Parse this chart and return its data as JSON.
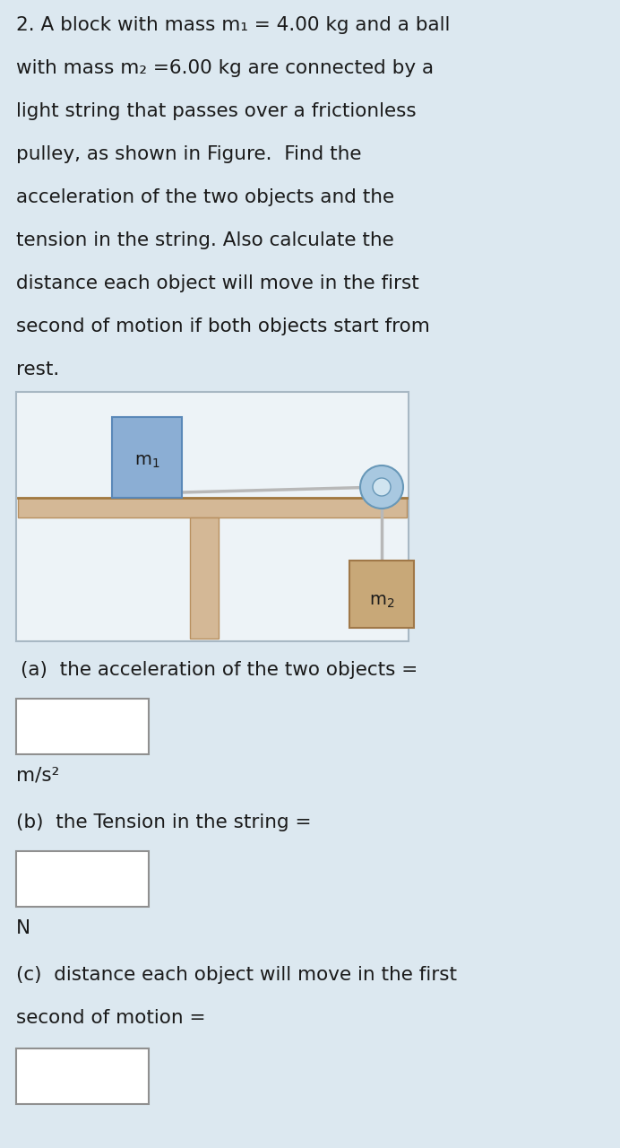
{
  "bg_color": "#dce8f0",
  "text_color": "#1a1a1a",
  "title_lines": [
    "2. A block with mass m₁ = 4.00 kg and a ball",
    "with mass m₂ =6.00 kg are connected by a",
    "light string that passes over a frictionless",
    "pulley, as shown in Figure.  Find the",
    "acceleration of the two objects and the",
    "tension in the string. Also calculate the",
    "distance each object will move in the first",
    "second of motion if both objects start from",
    "rest."
  ],
  "question_a": "(a)  the acceleration of the two objects =",
  "unit_a": "m/s²",
  "question_b": "(b)  the Tension in the string =",
  "unit_b": "N",
  "question_c1": "(c)  distance each object will move in the first",
  "question_c2": "second of motion =",
  "white_box_color": "#ffffff",
  "box_edge_color": "#909090",
  "diag_bg": "#edf3f7",
  "diag_border": "#a8b8c4",
  "table_surface_color": "#d4b896",
  "table_edge_color": "#b89060",
  "table_top_line": "#a07840",
  "leg_color": "#d4b896",
  "leg_edge": "#b89060",
  "m1_fill": "#8baed4",
  "m1_edge": "#5a88b8",
  "m2_fill": "#c8a878",
  "m2_edge": "#a07848",
  "pulley_outer": "#a8c8e0",
  "pulley_inner": "#d0e4f0",
  "pulley_edge": "#6898b8",
  "string_color": "#b8b8b8",
  "fontsize_text": 15.5,
  "fontsize_label": 14,
  "fontsize_sub": 14
}
